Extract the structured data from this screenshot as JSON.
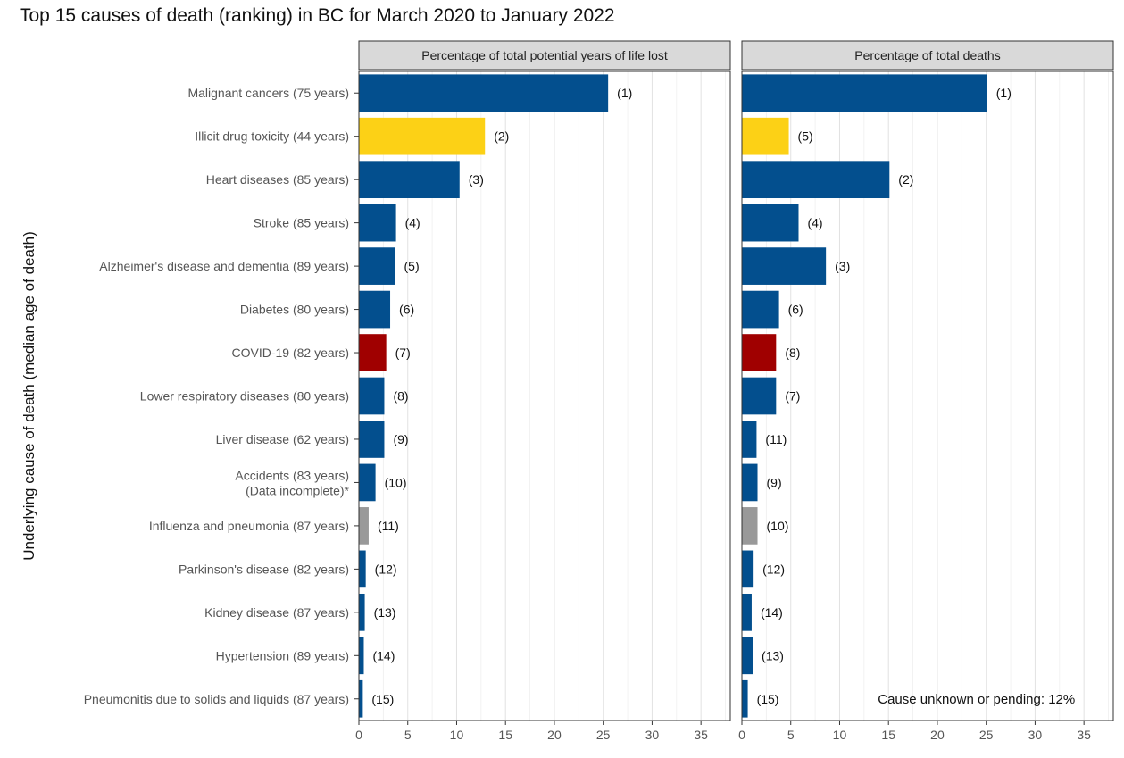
{
  "chart_data": {
    "type": "bar",
    "orientation": "horizontal",
    "title": "Top 15 causes of death (ranking) in BC for March 2020 to January 2022",
    "ylabel": "Underlying cause of death (median age of death)",
    "xlim": [
      0,
      38
    ],
    "xticks": [
      0,
      5,
      10,
      15,
      20,
      25,
      30,
      35
    ],
    "grid": true,
    "colors": {
      "blue": "#034f8e",
      "yellow": "#fcd116",
      "red": "#a00000",
      "gray": "#999999"
    },
    "categories": [
      {
        "name": "Malignant cancers (75 years)",
        "color": "blue"
      },
      {
        "name": "Illicit drug toxicity (44 years)",
        "color": "yellow"
      },
      {
        "name": "Heart diseases (85 years)",
        "color": "blue"
      },
      {
        "name": "Stroke (85 years)",
        "color": "blue"
      },
      {
        "name": "Alzheimer's disease and dementia (89 years)",
        "color": "blue"
      },
      {
        "name": "Diabetes (80 years)",
        "color": "blue"
      },
      {
        "name": "COVID-19 (82 years)",
        "color": "red"
      },
      {
        "name": "Lower respiratory diseases (80 years)",
        "color": "blue"
      },
      {
        "name": "Liver disease (62 years)",
        "color": "blue"
      },
      {
        "name": "Accidents (83 years)",
        "name_line2": "(Data incomplete)*",
        "color": "blue"
      },
      {
        "name": "Influenza and pneumonia (87 years)",
        "color": "gray"
      },
      {
        "name": "Parkinson's disease (82 years)",
        "color": "blue"
      },
      {
        "name": "Kidney disease (87 years)",
        "color": "blue"
      },
      {
        "name": "Hypertension (89 years)",
        "color": "blue"
      },
      {
        "name": "Pneumonitis due to solids and liquids (87 years)",
        "color": "blue"
      }
    ],
    "panels": [
      {
        "title": "Percentage of total potential years of life lost",
        "values": [
          25.5,
          12.9,
          10.3,
          3.8,
          3.7,
          3.2,
          2.8,
          2.6,
          2.6,
          1.7,
          1.0,
          0.7,
          0.6,
          0.5,
          0.4
        ],
        "ranks": [
          "(1)",
          "(2)",
          "(3)",
          "(4)",
          "(5)",
          "(6)",
          "(7)",
          "(8)",
          "(9)",
          "(10)",
          "(11)",
          "(12)",
          "(13)",
          "(14)",
          "(15)"
        ]
      },
      {
        "title": "Percentage of total deaths",
        "values": [
          25.1,
          4.8,
          15.1,
          5.8,
          8.6,
          3.8,
          3.5,
          3.5,
          1.5,
          1.6,
          1.6,
          1.2,
          1.0,
          1.1,
          0.6
        ],
        "ranks": [
          "(1)",
          "(5)",
          "(2)",
          "(4)",
          "(3)",
          "(6)",
          "(8)",
          "(7)",
          "(11)",
          "(9)",
          "(10)",
          "(12)",
          "(14)",
          "(13)",
          "(15)"
        ],
        "note": "Cause unknown or pending: 12%"
      }
    ]
  }
}
